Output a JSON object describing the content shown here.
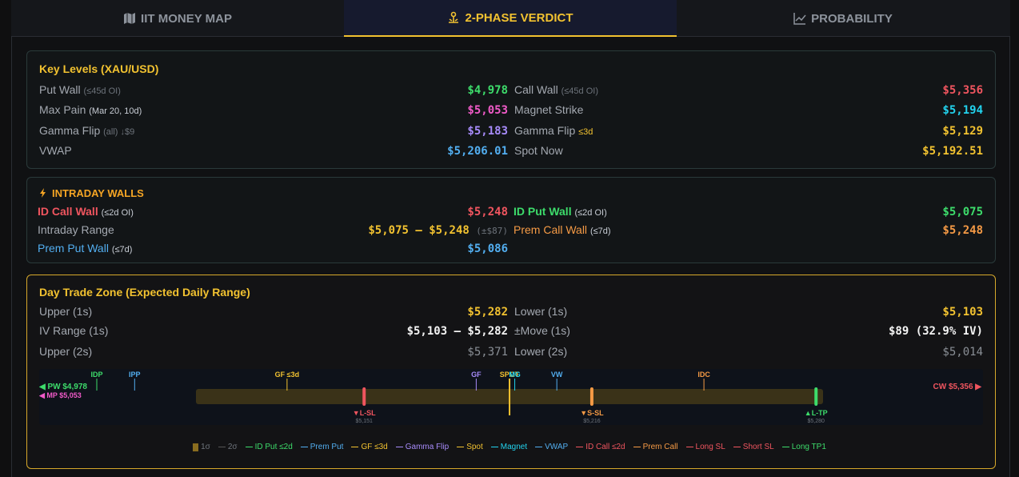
{
  "tabs": [
    {
      "label": "IIT MONEY MAP",
      "icon": "map-icon"
    },
    {
      "label": "2-PHASE VERDICT",
      "icon": "scale-icon"
    },
    {
      "label": "PROBABILITY",
      "icon": "chart-line-icon"
    }
  ],
  "key_levels": {
    "title": "Key Levels (XAU/USD)",
    "put_wall": {
      "label": "Put Wall",
      "sub": "(≤45d OI)",
      "value": "$4,978"
    },
    "call_wall": {
      "label": "Call Wall",
      "sub": "(≤45d OI)",
      "value": "$5,356"
    },
    "max_pain": {
      "label": "Max Pain",
      "sub": "(Mar 20, 10d)",
      "value": "$5,053"
    },
    "magnet": {
      "label": "Magnet Strike",
      "value": "$5,194"
    },
    "gamma_flip_all": {
      "label": "Gamma Flip",
      "sub": "(all) ↓$9",
      "value": "$5,183"
    },
    "gamma_flip_3d": {
      "label": "Gamma Flip",
      "sub": "≤3d",
      "value": "$5,129"
    },
    "vwap": {
      "label": "VWAP",
      "value": "$5,206.01"
    },
    "spot": {
      "label": "Spot Now",
      "value": "$5,192.51"
    }
  },
  "intraday": {
    "title": "INTRADAY WALLS",
    "id_call": {
      "label": "ID Call Wall",
      "sub": "(≤2d OI)",
      "value": "$5,248"
    },
    "id_put": {
      "label": "ID Put Wall",
      "sub": "(≤2d OI)",
      "value": "$5,075"
    },
    "range": {
      "label": "Intraday Range",
      "value": "$5,075 – $5,248",
      "sub": "(±$87)"
    },
    "prem_call": {
      "label": "Prem Call Wall",
      "sub": "(≤7d)",
      "value": "$5,248"
    },
    "prem_put": {
      "label": "Prem Put Wall",
      "sub": "(≤7d)",
      "value": "$5,086"
    }
  },
  "day_trade": {
    "title": "Day Trade Zone (Expected Daily Range)",
    "upper1": {
      "label": "Upper (1s)",
      "value": "$5,282"
    },
    "lower1": {
      "label": "Lower (1s)",
      "value": "$5,103"
    },
    "ivrange": {
      "label": "IV Range (1s)",
      "value": "$5,103 – $5,282"
    },
    "move": {
      "label": "±Move (1s)",
      "value": "$89 (32.9% IV)"
    },
    "upper2": {
      "label": "Upper (2s)",
      "value": "$5,371"
    },
    "lower2": {
      "label": "Lower (2s)",
      "value": "$5,014"
    }
  },
  "chart_data": {
    "type": "range-strip",
    "range_min": 4978,
    "range_max": 5356,
    "band_1s": [
      5103,
      5282
    ],
    "left_labels": [
      {
        "text": "◀ PW $4,978",
        "color": "#3ddc6b"
      },
      {
        "text": "◀ MP $5,053",
        "color": "#f05ac8"
      }
    ],
    "right_label": {
      "text": "CW $5,356 ▶",
      "color": "#f0555f"
    },
    "markers": [
      {
        "text": "IDP",
        "value": 5075,
        "color": "#3ddc6b"
      },
      {
        "text": "IPP",
        "value": 5086,
        "color": "#52aef0"
      },
      {
        "text": "GF ≤3d",
        "value": 5129,
        "color": "#f2c230"
      },
      {
        "text": "GF",
        "value": 5183,
        "color": "#a78bfa"
      },
      {
        "text": "SPOT",
        "value": 5192.51,
        "color": "#f2c230"
      },
      {
        "text": "MG",
        "value": 5194,
        "color": "#22d3ee"
      },
      {
        "text": "VW",
        "value": 5206.01,
        "color": "#52aef0"
      },
      {
        "text": "IDC",
        "value": 5248,
        "color": "#f59a45"
      }
    ],
    "trades": [
      {
        "text": "▼L-SL",
        "sub": "$5,151",
        "value": 5151,
        "color": "#f0555f"
      },
      {
        "text": "▼S-SL",
        "sub": "$5,216",
        "value": 5216,
        "color": "#f59a45"
      },
      {
        "text": "▲L-TP",
        "sub": "$5,280",
        "value": 5280,
        "color": "#3ddc6b"
      }
    ],
    "legend": [
      {
        "text": "1σ",
        "color": "#8a6d1f",
        "kind": "box"
      },
      {
        "text": "2σ",
        "color": "#555",
        "kind": "dash"
      },
      {
        "text": "ID Put ≤2d",
        "color": "#3ddc6b"
      },
      {
        "text": "Prem Put",
        "color": "#52aef0"
      },
      {
        "text": "GF ≤3d",
        "color": "#f2c230"
      },
      {
        "text": "Gamma Flip",
        "color": "#a78bfa"
      },
      {
        "text": "Spot",
        "color": "#f2c230"
      },
      {
        "text": "Magnet",
        "color": "#22d3ee"
      },
      {
        "text": "VWAP",
        "color": "#52aef0"
      },
      {
        "text": "ID Call ≤2d",
        "color": "#f0555f"
      },
      {
        "text": "Prem Call",
        "color": "#f59a45"
      },
      {
        "text": "Long SL",
        "color": "#f0555f"
      },
      {
        "text": "Short SL",
        "color": "#f0555f"
      },
      {
        "text": "Long TP1",
        "color": "#3ddc6b"
      }
    ]
  }
}
